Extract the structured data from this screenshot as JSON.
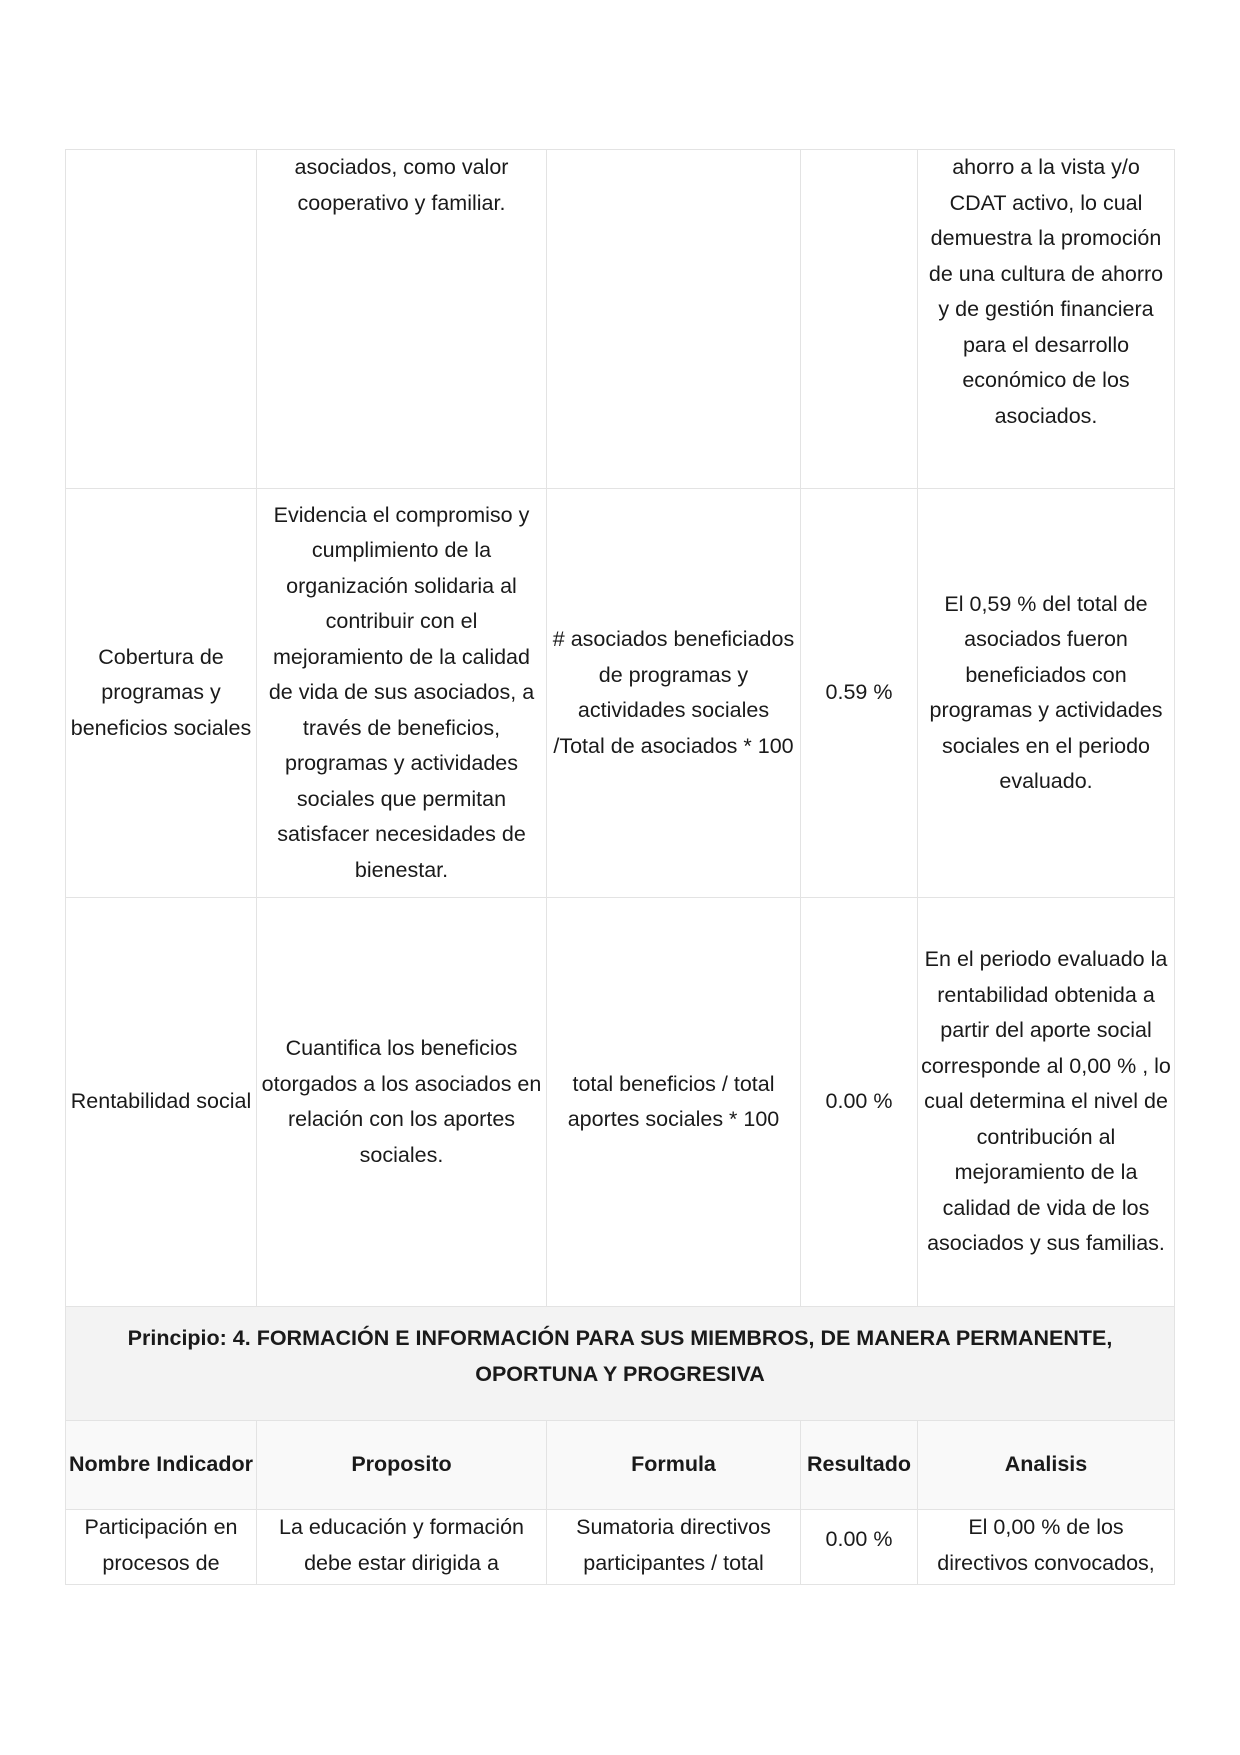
{
  "table": {
    "rows_top": [
      {
        "nombre": "",
        "proposito": "asociados, como valor cooperativo y familiar.",
        "formula": "",
        "resultado": "",
        "analisis": "ahorro a la vista y/o CDAT activo, lo cual demuestra la promoción de una cultura de ahorro y de gestión financiera para el desarrollo económico de los asociados."
      },
      {
        "nombre": "Cobertura de programas y beneficios sociales",
        "proposito": "Evidencia el compromiso y cumplimiento de la organización solidaria al contribuir con el mejoramiento de la calidad de vida de sus asociados, a través de beneficios, programas y actividades sociales que permitan satisfacer necesidades de bienestar.",
        "formula": "# asociados beneficiados de programas y actividades sociales /Total de asociados * 100",
        "resultado": "0.59 %",
        "analisis": "El 0,59 % del total de asociados fueron beneficiados con programas y actividades sociales en el periodo evaluado."
      },
      {
        "nombre": "Rentabilidad social",
        "proposito": "Cuantifica los beneficios otorgados a los asociados en relación con los aportes sociales.",
        "formula": "total beneficios / total aportes sociales * 100",
        "resultado": "0.00 %",
        "analisis": "En el periodo evaluado la rentabilidad obtenida a partir del aporte social corresponde al 0,00 % , lo cual determina el nivel de contribución al mejoramiento de la calidad de vida de los asociados y sus familias."
      }
    ],
    "principio": "Principio: 4. FORMACIÓN E INFORMACIÓN PARA SUS MIEMBROS, DE MANERA PERMANENTE, OPORTUNA Y PROGRESIVA",
    "headers": {
      "nombre": "Nombre Indicador",
      "proposito": "Proposito",
      "formula": "Formula",
      "resultado": "Resultado",
      "analisis": "Analisis"
    },
    "row_bottom": {
      "nombre": "Participación en procesos de",
      "proposito": "La educación y formación debe estar dirigida a",
      "formula": "Sumatoria directivos participantes / total",
      "resultado": "0.00 %",
      "analisis": "El 0,00 % de los directivos convocados,"
    }
  }
}
